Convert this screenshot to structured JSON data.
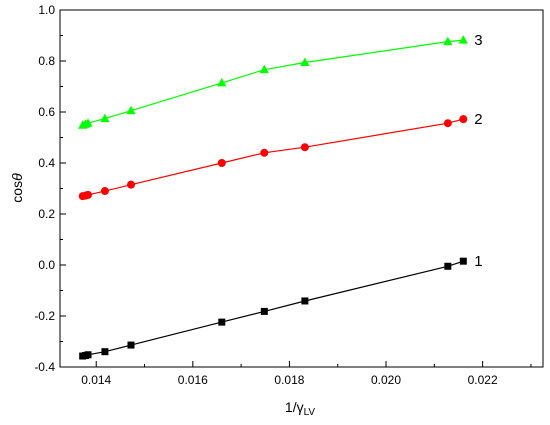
{
  "chart_data": {
    "type": "line",
    "title": "",
    "xlabel": {
      "main": "1/γ",
      "sub": "LV"
    },
    "ylabel": {
      "main": "cos",
      "symbol": "θ"
    },
    "xlim": [
      0.01325,
      0.02325
    ],
    "ylim": [
      -0.4,
      1.0
    ],
    "xticks": [
      {
        "value": 0.014,
        "label": "0.014"
      },
      {
        "value": 0.016,
        "label": "0.016"
      },
      {
        "value": 0.018,
        "label": "0.018"
      },
      {
        "value": 0.02,
        "label": "0.020"
      },
      {
        "value": 0.022,
        "label": "0.022"
      }
    ],
    "yticks": [
      {
        "value": -0.4,
        "label": "-0.4"
      },
      {
        "value": -0.2,
        "label": "-0.2"
      },
      {
        "value": 0.0,
        "label": "0.0"
      },
      {
        "value": 0.2,
        "label": "0.2"
      },
      {
        "value": 0.4,
        "label": "0.4"
      },
      {
        "value": 0.6,
        "label": "0.6"
      },
      {
        "value": 0.8,
        "label": "0.8"
      },
      {
        "value": 1.0,
        "label": "1.0"
      }
    ],
    "grid": false,
    "series": [
      {
        "label": "1",
        "color": "#000000",
        "marker": "square",
        "x": [
          0.01372,
          0.01378,
          0.01383,
          0.01418,
          0.01472,
          0.0166,
          0.01748,
          0.01832,
          0.02128,
          0.0216
        ],
        "y": [
          -0.357,
          -0.355,
          -0.352,
          -0.34,
          -0.314,
          -0.224,
          -0.182,
          -0.141,
          -0.005,
          0.015
        ]
      },
      {
        "label": "2",
        "color": "#ff0000",
        "marker": "circle",
        "x": [
          0.01372,
          0.01378,
          0.01383,
          0.01418,
          0.01472,
          0.0166,
          0.01748,
          0.01832,
          0.02128,
          0.0216
        ],
        "y": [
          0.27,
          0.272,
          0.275,
          0.29,
          0.315,
          0.4,
          0.44,
          0.462,
          0.556,
          0.572
        ]
      },
      {
        "label": "3",
        "color": "#00ff00",
        "marker": "triangle",
        "x": [
          0.01372,
          0.01378,
          0.01383,
          0.01418,
          0.01472,
          0.0166,
          0.01748,
          0.01832,
          0.02128,
          0.0216
        ],
        "y": [
          0.548,
          0.552,
          0.556,
          0.574,
          0.605,
          0.714,
          0.766,
          0.794,
          0.876,
          0.882
        ]
      }
    ]
  }
}
